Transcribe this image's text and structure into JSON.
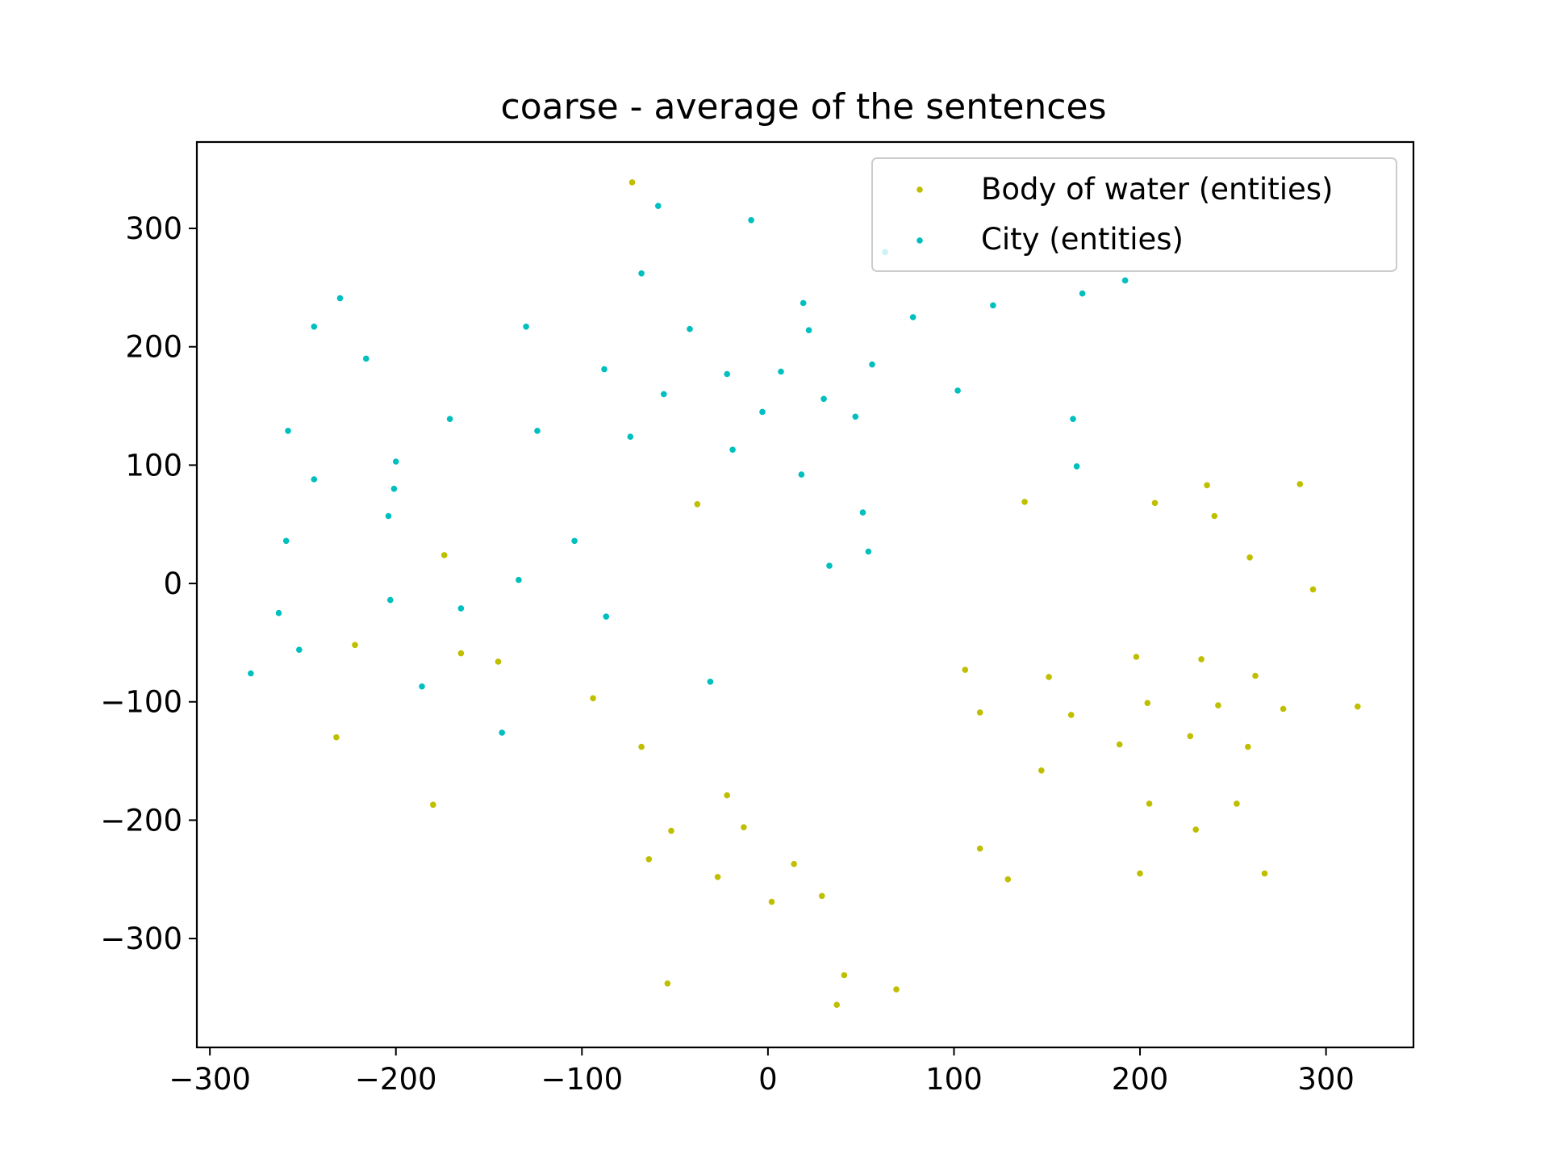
{
  "chart_data": {
    "type": "scatter",
    "title": "coarse - average of the sentences",
    "xlabel": "",
    "ylabel": "",
    "xlim": [
      -307,
      347
    ],
    "ylim": [
      -392,
      373
    ],
    "xticks": [
      -300,
      -200,
      -100,
      0,
      100,
      200,
      300
    ],
    "yticks": [
      -300,
      -200,
      -100,
      0,
      100,
      200,
      300
    ],
    "xtick_labels": [
      "−300",
      "−200",
      "−100",
      "0",
      "100",
      "200",
      "300"
    ],
    "ytick_labels": [
      "−300",
      "−200",
      "−100",
      "0",
      "100",
      "200",
      "300"
    ],
    "grid": false,
    "legend_position": "top-right",
    "series": [
      {
        "name": "Body of water (entities)",
        "color": "#bfbf00",
        "points": [
          [
            -73,
            339
          ],
          [
            -38,
            67
          ],
          [
            -174,
            24
          ],
          [
            -222,
            -52
          ],
          [
            -165,
            -59
          ],
          [
            -145,
            -66
          ],
          [
            -94,
            -97
          ],
          [
            -232,
            -130
          ],
          [
            -180,
            -187
          ],
          [
            -68,
            -138
          ],
          [
            -22,
            -179
          ],
          [
            -52,
            -209
          ],
          [
            -13,
            -206
          ],
          [
            -64,
            -233
          ],
          [
            -27,
            -248
          ],
          [
            14,
            -237
          ],
          [
            2,
            -269
          ],
          [
            29,
            -264
          ],
          [
            -54,
            -338
          ],
          [
            41,
            -331
          ],
          [
            37,
            -356
          ],
          [
            69,
            -343
          ],
          [
            138,
            69
          ],
          [
            208,
            68
          ],
          [
            236,
            83
          ],
          [
            240,
            57
          ],
          [
            286,
            84
          ],
          [
            259,
            22
          ],
          [
            293,
            -5
          ],
          [
            106,
            -73
          ],
          [
            151,
            -79
          ],
          [
            114,
            -109
          ],
          [
            163,
            -111
          ],
          [
            198,
            -62
          ],
          [
            233,
            -64
          ],
          [
            262,
            -78
          ],
          [
            204,
            -101
          ],
          [
            242,
            -103
          ],
          [
            277,
            -106
          ],
          [
            317,
            -104
          ],
          [
            189,
            -136
          ],
          [
            227,
            -129
          ],
          [
            258,
            -138
          ],
          [
            147,
            -158
          ],
          [
            205,
            -186
          ],
          [
            252,
            -186
          ],
          [
            230,
            -208
          ],
          [
            114,
            -224
          ],
          [
            129,
            -250
          ],
          [
            200,
            -245
          ],
          [
            267,
            -245
          ]
        ]
      },
      {
        "name": "City (entities)",
        "color": "#00bfbf",
        "points": [
          [
            -59,
            319
          ],
          [
            -9,
            307
          ],
          [
            -68,
            262
          ],
          [
            -230,
            241
          ],
          [
            -244,
            217
          ],
          [
            -130,
            217
          ],
          [
            -216,
            190
          ],
          [
            -42,
            215
          ],
          [
            19,
            237
          ],
          [
            22,
            214
          ],
          [
            -88,
            181
          ],
          [
            -22,
            177
          ],
          [
            7,
            179
          ],
          [
            -56,
            160
          ],
          [
            -3,
            145
          ],
          [
            30,
            156
          ],
          [
            -258,
            129
          ],
          [
            -171,
            139
          ],
          [
            -124,
            129
          ],
          [
            -74,
            124
          ],
          [
            -19,
            113
          ],
          [
            -244,
            88
          ],
          [
            -200,
            103
          ],
          [
            -201,
            80
          ],
          [
            18,
            92
          ],
          [
            -204,
            57
          ],
          [
            -259,
            36
          ],
          [
            -104,
            36
          ],
          [
            -134,
            3
          ],
          [
            -203,
            -14
          ],
          [
            -165,
            -21
          ],
          [
            -263,
            -25
          ],
          [
            -87,
            -28
          ],
          [
            -252,
            -56
          ],
          [
            -278,
            -76
          ],
          [
            -186,
            -87
          ],
          [
            -31,
            -83
          ],
          [
            -143,
            -126
          ],
          [
            51,
            60
          ],
          [
            54,
            27
          ],
          [
            33,
            15
          ],
          [
            56,
            185
          ],
          [
            47,
            141
          ],
          [
            78,
            225
          ],
          [
            102,
            163
          ],
          [
            121,
            235
          ],
          [
            164,
            139
          ],
          [
            166,
            99
          ],
          [
            169,
            245
          ],
          [
            192,
            256
          ],
          [
            63,
            280
          ]
        ]
      }
    ]
  }
}
